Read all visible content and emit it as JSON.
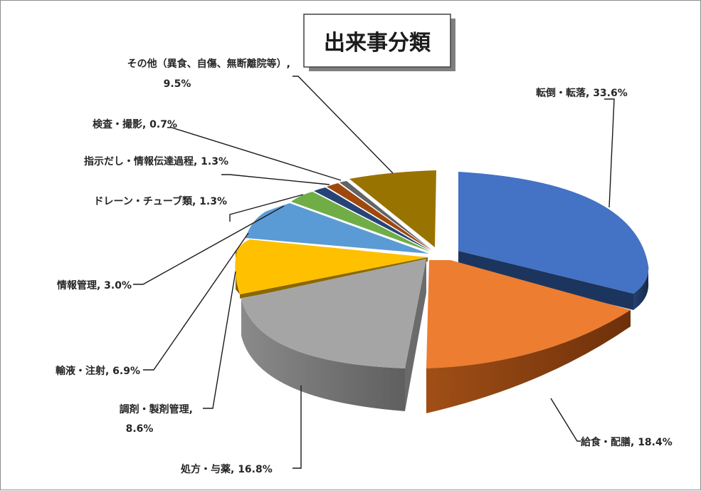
{
  "chart_data": {
    "type": "pie",
    "title": "出来事分類",
    "slices": [
      {
        "label": "転倒・転落, 33.6%",
        "value": 33.6,
        "color": "#4472c4",
        "side": "#1f3864"
      },
      {
        "label": "給食・配膳, 18.4%",
        "value": 18.4,
        "color": "#ed7d31",
        "side": "#843c0c"
      },
      {
        "label": "処方・与薬, 16.8%",
        "value": 16.8,
        "color": "#a5a5a5",
        "side": "#595959"
      },
      {
        "label": "調剤・製剤管理, 8.6%",
        "value": 8.6,
        "color": "#ffc000",
        "side": "#7f6000"
      },
      {
        "label": "輸液・注射, 6.9%",
        "value": 6.9,
        "color": "#5b9bd5",
        "side": "#1f4e79"
      },
      {
        "label": "情報管理, 3.0%",
        "value": 3.0,
        "color": "#70ad47",
        "side": "#375623"
      },
      {
        "label": "ドレーン・チューブ類, 1.3%",
        "value": 1.3,
        "color": "#264478",
        "side": "#121f3a"
      },
      {
        "label": "指示だし・情報伝達過程, 1.3%",
        "value": 1.3,
        "color": "#9e480e",
        "side": "#4d2306"
      },
      {
        "label": "検査・撮影, 0.7%",
        "value": 0.7,
        "color": "#636363",
        "side": "#303030"
      },
      {
        "label": "その他（異食、自傷、無断離院等）, 9.5%",
        "value": 9.5,
        "color": "#997300",
        "side": "#4d3a00"
      }
    ]
  },
  "labels": {
    "l0": "転倒・転落, 33.6%",
    "l1": "給食・配膳, 18.4%",
    "l2": "処方・与薬, 16.8%",
    "l3a": "調剤・製剤管理,",
    "l3b": "8.6%",
    "l4": "輸液・注射, 6.9%",
    "l5": "情報管理, 3.0%",
    "l6": "ドレーン・チューブ類, 1.3%",
    "l7": "指示だし・情報伝達過程, 1.3%",
    "l8": "検査・撮影, 0.7%",
    "l9a": "その他（異食、自傷、無断離院等）,",
    "l9b": "9.5%"
  }
}
